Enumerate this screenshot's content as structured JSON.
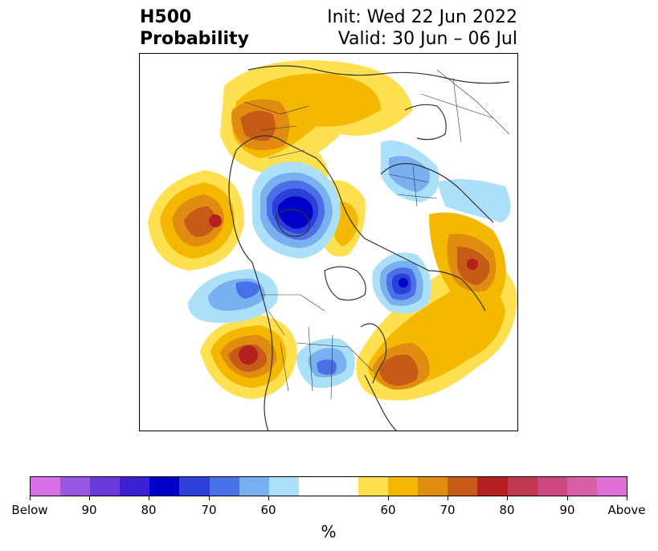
{
  "header": {
    "variable": "H500",
    "field": "Probability",
    "init": "Init: Wed 22 Jun 2022",
    "valid": "Valid: 30 Jun – 06 Jul"
  },
  "map": {
    "below_color": "#3a5ae0",
    "above_color": "#d8961a"
  },
  "colorbar": {
    "colors": [
      "#d870e8",
      "#9a58e0",
      "#6a3ad8",
      "#3a20d0",
      "#0000c8",
      "#2a40d8",
      "#4a70e8",
      "#78b0f0",
      "#ace0f8",
      "#ffffff",
      "#ffffff",
      "#ffe050",
      "#f5b800",
      "#e08c10",
      "#c85a18",
      "#b42020",
      "#c03850",
      "#cc4880",
      "#d860a8",
      "#e070d8"
    ],
    "tick_labels": [
      "Below",
      "90",
      "80",
      "70",
      "60",
      "60",
      "70",
      "80",
      "90",
      "Above"
    ],
    "unit": "%"
  }
}
